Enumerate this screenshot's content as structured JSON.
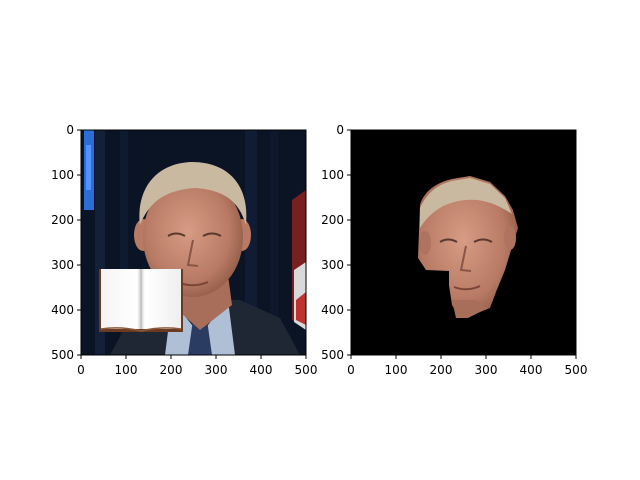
{
  "chart_data": [
    {
      "type": "image",
      "title": "",
      "xlabel": "",
      "ylabel": "",
      "xlim": [
        0,
        500
      ],
      "ylim": [
        500,
        0
      ],
      "xticks": [
        0,
        100,
        200,
        300,
        400,
        500
      ],
      "yticks": [
        0,
        100,
        200,
        300,
        400,
        500
      ],
      "content": "portrait photo with book image overlay",
      "overlay": {
        "x_range": [
          40,
          225
        ],
        "y_range": [
          305,
          445
        ]
      },
      "colors": {
        "background": "#0b1424",
        "face": "#c08a74",
        "hair": "#c9b9a0",
        "suit": "#1e2733",
        "shirt": "#aebfd6"
      }
    },
    {
      "type": "image",
      "title": "",
      "xlabel": "",
      "ylabel": "",
      "xlim": [
        0,
        500
      ],
      "ylim": [
        500,
        0
      ],
      "xticks": [
        0,
        100,
        200,
        300,
        400,
        500
      ],
      "yticks": [
        0,
        100,
        200,
        300,
        400,
        500
      ],
      "content": "segmented face on black background",
      "colors": {
        "background": "#000000",
        "face": "#c08a74",
        "hair": "#c9b9a0"
      }
    }
  ]
}
